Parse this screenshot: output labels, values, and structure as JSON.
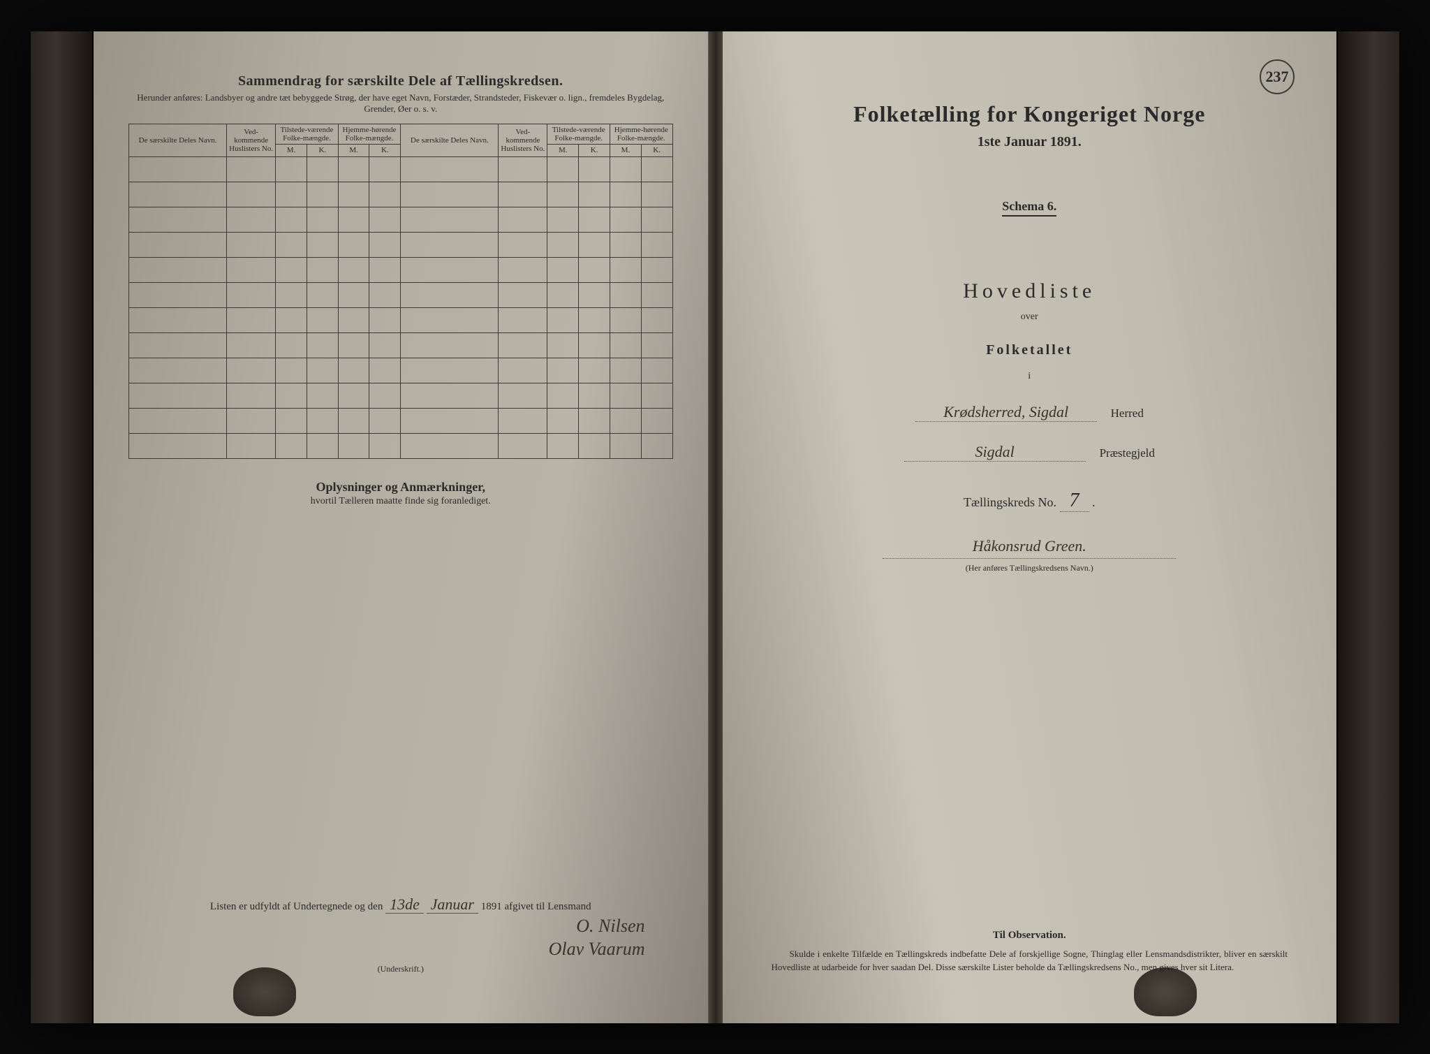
{
  "page_number": "237",
  "left": {
    "summary_title": "Sammendrag for særskilte Dele af Tællingskredsen.",
    "summary_sub": "Herunder anføres: Landsbyer og andre tæt bebyggede Strøg, der have eget Navn, Forstæder, Strandsteder, Fiskevær o. lign., fremdeles Bygdelag, Grender, Øer o. s. v.",
    "cols": {
      "name": "De særskilte Deles Navn.",
      "husl_no": "Ved-kommende Huslisters No.",
      "tilst": "Tilstede-værende Folke-mængde.",
      "hjem": "Hjemme-hørende Folke-mængde.",
      "m": "M.",
      "k": "K."
    },
    "blank_rows": 12,
    "oplys_title": "Oplysninger og Anmærkninger,",
    "oplys_sub": "hvortil Tælleren maatte finde sig foranlediget.",
    "sig_prefix": "Listen er udfyldt af Undertegnede og den",
    "sig_date_day": "13de",
    "sig_date_month": "Januar",
    "sig_year": "1891 afgivet til Lensmand",
    "sig_name1": "O. Nilsen",
    "sig_name2": "Olav Vaarum",
    "underskrift": "(Underskrift.)"
  },
  "right": {
    "title": "Folketælling for Kongeriget Norge",
    "date": "1ste Januar 1891.",
    "schema": "Schema 6.",
    "hovedliste": "Hovedliste",
    "over": "over",
    "folketallet": "Folketallet",
    "i": "i",
    "herred_value": "Krødsherred, Sigdal",
    "herred_label": "Herred",
    "prestegjeld_value": "Sigdal",
    "prestegjeld_label": "Præstegjeld",
    "kreds_label": "Tællingskreds No.",
    "kreds_no": "7",
    "kreds_name": "Håkonsrud Green.",
    "kreds_note": "(Her anføres Tællingskredsens Navn.)",
    "obs_title": "Til Observation.",
    "obs_text": "Skulde i enkelte Tilfælde en Tællingskreds indbefatte Dele af forskjellige Sogne, Thinglag eller Lensmandsdistrikter, bliver en særskilt Hovedliste at udarbeide for hver saadan Del. Disse særskilte Lister beholde da Tællingskredsens No., men gives hver sit Litera."
  }
}
